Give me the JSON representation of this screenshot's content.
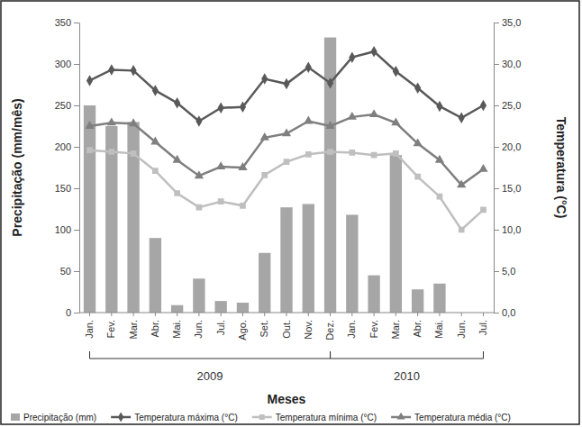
{
  "chart_data": {
    "type": "bar",
    "x_label": "Meses",
    "y_label": "Precipitação (mm/mês)",
    "y2_label": "Temperatura (°C)",
    "categories": [
      "Jan.",
      "Fev.",
      "Mar.",
      "Abr.",
      "Mai.",
      "Jun.",
      "Jul.",
      "Ago.",
      "Set.",
      "Out.",
      "Nov.",
      "Dez.",
      "Jan.",
      "Fev.",
      "Mar.",
      "Abr.",
      "Mai.",
      "Jun.",
      "Jul."
    ],
    "x_groups": [
      {
        "label": "2009",
        "start": 0,
        "end": 11
      },
      {
        "label": "2010",
        "start": 11,
        "end": 18
      }
    ],
    "ylim": [
      0,
      350
    ],
    "yticks": [
      0,
      50,
      100,
      150,
      200,
      250,
      300,
      350
    ],
    "y2lim": [
      0,
      35
    ],
    "y2ticks": [
      {
        "value": 0,
        "label": "0,0"
      },
      {
        "value": 5,
        "label": "5,0"
      },
      {
        "value": 10,
        "label": "10,0"
      },
      {
        "value": 15,
        "label": "15,0"
      },
      {
        "value": 20,
        "label": "20,0"
      },
      {
        "value": 25,
        "label": "25,0"
      },
      {
        "value": 30,
        "label": "30,0"
      },
      {
        "value": 35,
        "label": "35,0"
      }
    ],
    "legend": "bottom",
    "grid": false,
    "series": [
      {
        "name": "Precipitação (mm)",
        "type": "bar",
        "color": "#a6a6a6",
        "values": [
          250,
          225,
          230,
          90,
          9,
          41,
          14,
          12,
          72,
          127,
          131,
          332,
          118,
          45,
          190,
          28,
          35,
          0,
          0
        ]
      },
      {
        "name": "Temperatura máxima (°C)",
        "type": "line",
        "axis": "y2",
        "color": "#595959",
        "marker": "diamond",
        "values": [
          28.0,
          29.3,
          29.2,
          26.8,
          25.3,
          23.1,
          24.7,
          24.8,
          28.2,
          27.6,
          29.6,
          27.7,
          30.8,
          31.5,
          29.1,
          27.1,
          24.9,
          23.5,
          25.0
        ]
      },
      {
        "name": "Temperatura mínima (°C)",
        "type": "line",
        "axis": "y2",
        "color": "#bfbfbf",
        "marker": "square",
        "values": [
          19.6,
          19.4,
          19.2,
          17.1,
          14.4,
          12.7,
          13.4,
          12.9,
          16.6,
          18.2,
          19.1,
          19.4,
          19.3,
          19.0,
          19.2,
          16.4,
          14.0,
          10.0,
          12.4
        ]
      },
      {
        "name": "Temperatura média (°C)",
        "type": "line",
        "axis": "y2",
        "color": "#7f7f7f",
        "marker": "triangle",
        "values": [
          22.5,
          22.9,
          22.8,
          20.6,
          18.4,
          16.5,
          17.6,
          17.5,
          21.1,
          21.6,
          23.1,
          22.5,
          23.6,
          23.9,
          22.9,
          20.4,
          18.4,
          15.4,
          17.3
        ]
      }
    ]
  }
}
